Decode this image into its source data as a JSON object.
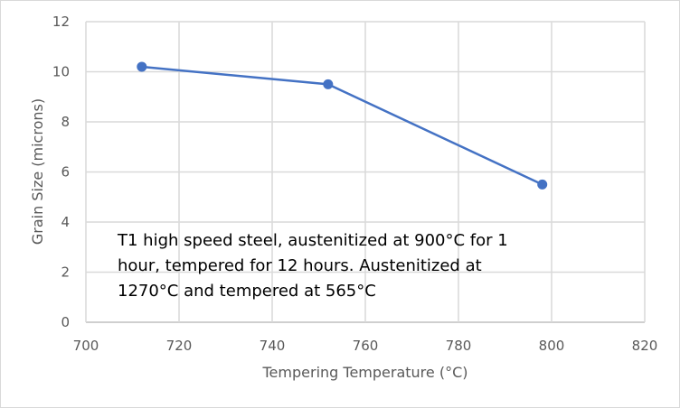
{
  "chart_data": {
    "type": "line",
    "title": "",
    "xlabel": "Tempering Temperature (°C)",
    "ylabel": "Grain Size (microns)",
    "xlim": [
      700,
      820
    ],
    "ylim": [
      0,
      12
    ],
    "x_ticks": [
      "700",
      "720",
      "740",
      "760",
      "780",
      "800",
      "820"
    ],
    "y_ticks": [
      "0",
      "2",
      "4",
      "6",
      "8",
      "10",
      "12"
    ],
    "grid": true,
    "series": [
      {
        "name": "Grain Size",
        "color": "#4472c4",
        "x": [
          712,
          752,
          798
        ],
        "y": [
          10.2,
          9.5,
          5.5
        ]
      }
    ],
    "annotation": [
      "T1 high speed steel, austenitized at 900°C for 1",
      "hour, tempered for 12 hours. Austenitized at",
      "1270°C and tempered at 565°C"
    ]
  }
}
